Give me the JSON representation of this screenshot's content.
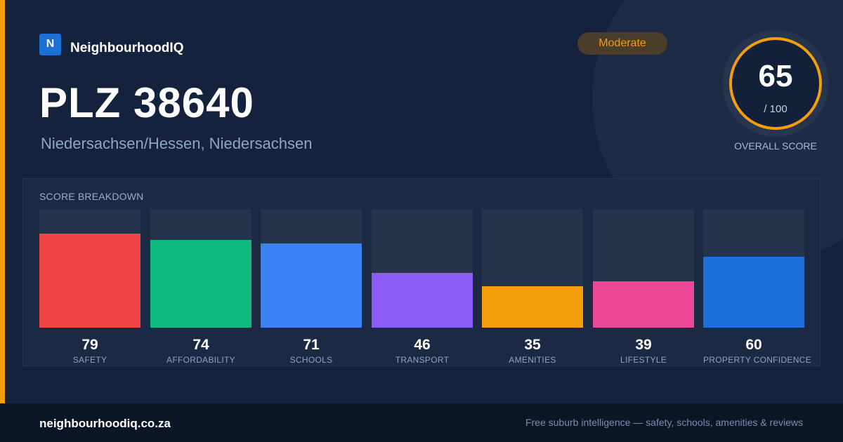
{
  "brand": {
    "logo_letter": "N",
    "name": "NeighbourhoodIQ"
  },
  "header": {
    "title": "PLZ 38640",
    "location": "Niedersachsen/Hessen, Niedersachsen",
    "rating_badge": "Moderate"
  },
  "overall": {
    "score": "65",
    "max": "/ 100",
    "caption": "OVERALL SCORE",
    "ring_color": "#f59e0b"
  },
  "breakdown": {
    "title": "SCORE BREAKDOWN",
    "items": [
      {
        "label": "SAFETY",
        "value": 79,
        "color": "#ef4444"
      },
      {
        "label": "AFFORDABILITY",
        "value": 74,
        "color": "#10b981"
      },
      {
        "label": "SCHOOLS",
        "value": 71,
        "color": "#3b82f6"
      },
      {
        "label": "TRANSPORT",
        "value": 46,
        "color": "#8b5cf6"
      },
      {
        "label": "AMENITIES",
        "value": 35,
        "color": "#f59e0b"
      },
      {
        "label": "LIFESTYLE",
        "value": 39,
        "color": "#ec4899"
      },
      {
        "label": "PROPERTY CONFIDENCE",
        "value": 60,
        "color": "#1d6fd8"
      }
    ]
  },
  "footer": {
    "site": "neighbourhoodiq.co.za",
    "tagline": "Free suburb intelligence — safety, schools, amenities & reviews"
  },
  "colors": {
    "accent": "#f59e0b",
    "background": "#15223d",
    "brand_blue": "#1d6fd8"
  }
}
